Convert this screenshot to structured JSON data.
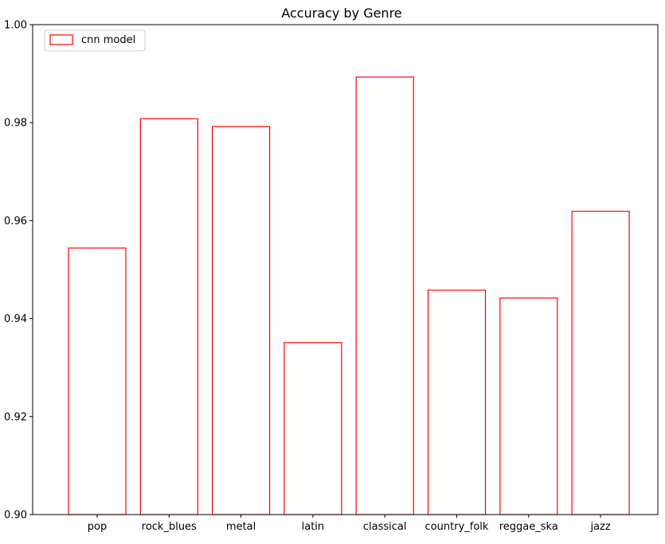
{
  "chart_data": {
    "type": "bar",
    "title": "Accuracy by Genre",
    "xlabel": "",
    "ylabel": "",
    "categories": [
      "pop",
      "rock_blues",
      "metal",
      "latin",
      "classical",
      "country_folk",
      "reggae_ska",
      "jazz"
    ],
    "series": [
      {
        "name": "cnn model",
        "values": [
          0.9544,
          0.9808,
          0.9792,
          0.9351,
          0.9893,
          0.9458,
          0.9442,
          0.9619
        ],
        "style": "outline",
        "color": "#ff0000"
      }
    ],
    "ylim": [
      0.9,
      1.0
    ],
    "yticks": [
      "0.90",
      "0.92",
      "0.94",
      "0.96",
      "0.98",
      "1.00"
    ],
    "grid": false,
    "legend_position": "top-left"
  }
}
